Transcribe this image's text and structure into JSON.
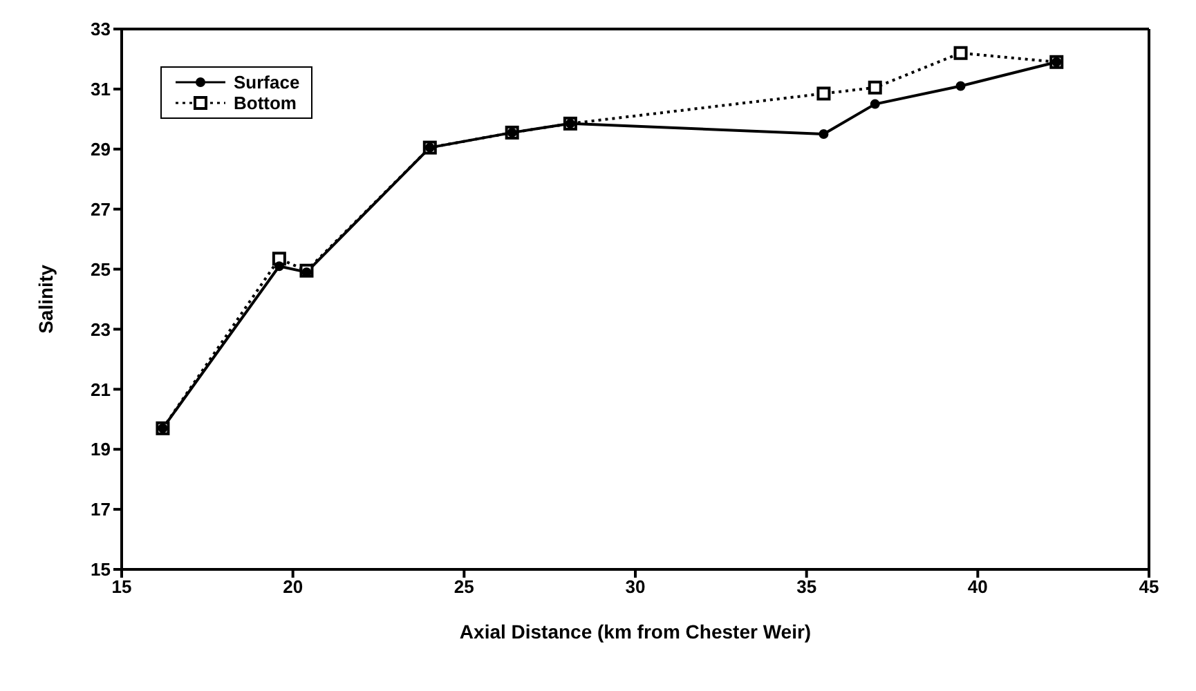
{
  "chart_data": {
    "type": "line",
    "xlabel": "Axial Distance (km from Chester Weir)",
    "ylabel": "Salinity",
    "xlim": [
      15,
      45
    ],
    "xticks": [
      15,
      20,
      25,
      30,
      35,
      40,
      45
    ],
    "ylim": [
      15,
      33
    ],
    "yticks": [
      15,
      17,
      19,
      21,
      23,
      25,
      27,
      29,
      31,
      33
    ],
    "grid": false,
    "legend": "top left",
    "series": [
      {
        "name": "Surface",
        "color": "#000000",
        "marker": "circle",
        "line_style": "solid",
        "x": [
          16.2,
          19.6,
          20.4,
          24.0,
          26.4,
          28.1,
          35.5,
          37.0,
          39.5,
          42.3
        ],
        "values": [
          19.7,
          25.1,
          24.9,
          29.05,
          29.55,
          29.85,
          29.5,
          30.5,
          31.1,
          31.9
        ]
      },
      {
        "name": "Bottom",
        "color": "#000000",
        "marker": "square",
        "line_style": "dotted",
        "x": [
          16.2,
          19.6,
          20.4,
          24.0,
          26.4,
          28.1,
          35.5,
          37.0,
          39.5,
          42.3
        ],
        "values": [
          19.7,
          25.35,
          24.95,
          29.05,
          29.55,
          29.85,
          30.85,
          31.05,
          32.2,
          31.9
        ]
      }
    ]
  }
}
